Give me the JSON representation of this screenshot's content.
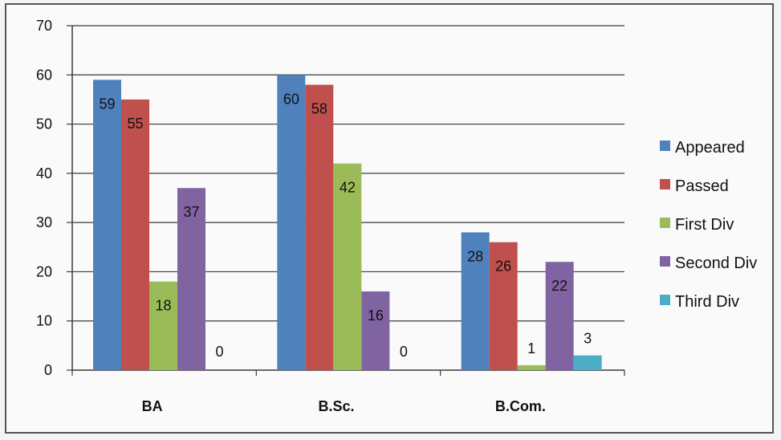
{
  "chart_data": {
    "type": "bar",
    "categories": [
      "BA",
      "B.Sc.",
      "B.Com."
    ],
    "series": [
      {
        "name": "Appeared",
        "values": [
          59,
          60,
          28
        ],
        "color": "#4f81bd"
      },
      {
        "name": "Passed",
        "values": [
          55,
          58,
          26
        ],
        "color": "#c0504d"
      },
      {
        "name": "First Div",
        "values": [
          18,
          42,
          1
        ],
        "color": "#9bbb59"
      },
      {
        "name": "Second Div",
        "values": [
          37,
          16,
          22
        ],
        "color": "#8064a2"
      },
      {
        "name": "Third Div",
        "values": [
          0,
          0,
          3
        ],
        "color": "#4bacc6"
      }
    ],
    "ylim": [
      0,
      70
    ],
    "yticks": [
      0,
      10,
      20,
      30,
      40,
      50,
      60,
      70
    ],
    "grid": true,
    "legend": "right"
  }
}
